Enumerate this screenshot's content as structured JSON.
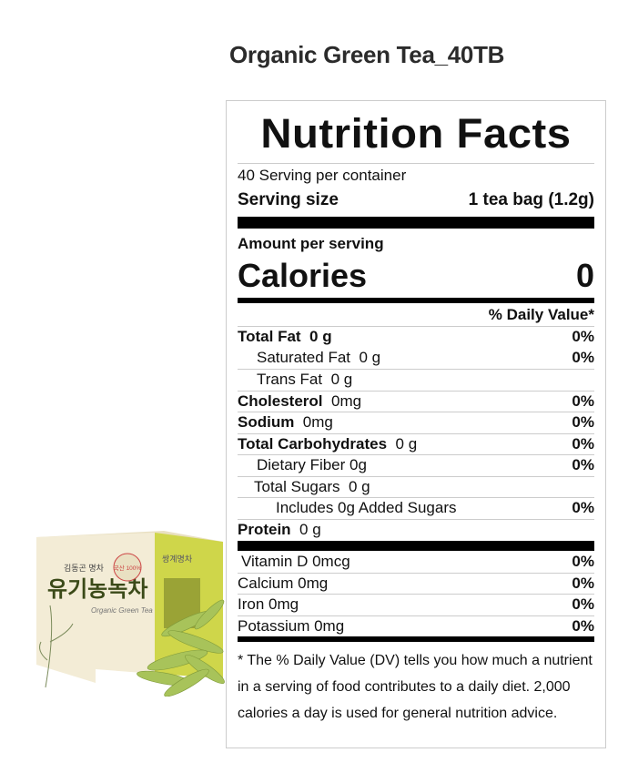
{
  "product_title": "Organic Green Tea_40TB",
  "label": {
    "heading": "Nutrition Facts",
    "servings": "40 Serving per container",
    "serving_size_label": "Serving size",
    "serving_size_value": "1 tea bag (1.2g)",
    "amount_per_serving": "Amount per serving",
    "calories_label": "Calories",
    "calories_value": "0",
    "dv_header": "% Daily Value*",
    "nutrients": [
      {
        "name": "Total Fat",
        "amount": "0 g",
        "dv": "0%"
      },
      {
        "name": "Saturated Fat",
        "amount": "0 g",
        "dv": "0%"
      },
      {
        "name": "Trans Fat",
        "amount": "0 g",
        "dv": ""
      },
      {
        "name": "Cholesterol",
        "amount": "0mg",
        "dv": "0%"
      },
      {
        "name": "Sodium",
        "amount": "0mg",
        "dv": "0%"
      },
      {
        "name": "Total Carbohydrates",
        "amount": "0 g",
        "dv": "0%"
      },
      {
        "name": "Dietary Fiber",
        "amount": "0g",
        "dv": "0%"
      },
      {
        "name": "Total Sugars",
        "amount": "0 g",
        "dv": ""
      },
      {
        "name": "Includes 0g Added Sugars",
        "amount": "",
        "dv": "0%"
      },
      {
        "name": "Protein",
        "amount": "0 g",
        "dv": ""
      }
    ],
    "vitamins": [
      {
        "name": "Vitamin D 0mcg",
        "dv": "0%"
      },
      {
        "name": "Calcium 0mg",
        "dv": "0%"
      },
      {
        "name": "Iron 0mg",
        "dv": "0%"
      },
      {
        "name": "Potassium 0mg",
        "dv": "0%"
      }
    ],
    "footnote": "* The % Daily Value (DV) tells you how much a nutrient in a serving of food contributes to a daily diet. 2,000 calories a day is used for general nutrition advice."
  },
  "package": {
    "brand": "쌍계명차",
    "korean_name": "유기농녹차",
    "subtitle": "Organic Green Tea",
    "badge": "국산 100%",
    "colors": {
      "box_front": "#f3ecd6",
      "box_side": "#cfd64a",
      "leaves": "#a8c35a"
    }
  }
}
